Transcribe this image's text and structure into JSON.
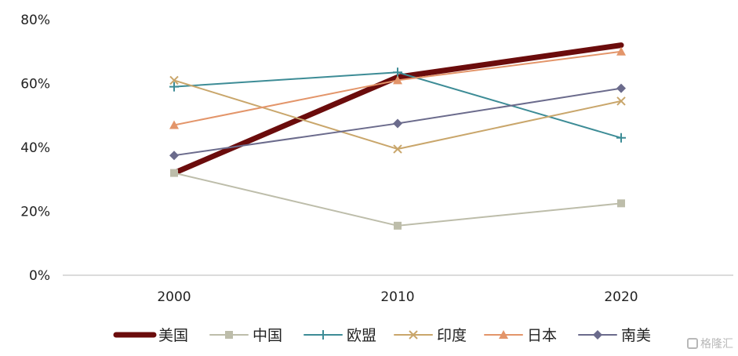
{
  "chart_data": {
    "type": "line",
    "title": "",
    "xlabel": "",
    "ylabel": "",
    "categories": [
      "2000",
      "2010",
      "2020"
    ],
    "ylim": [
      0,
      0.8
    ],
    "yticks": [
      "0%",
      "20%",
      "40%",
      "60%",
      "80%"
    ],
    "legend_position": "bottom",
    "grid": false,
    "series": [
      {
        "name": "美国",
        "values": [
          0.32,
          0.62,
          0.72
        ],
        "color": "#6b0c0c",
        "marker": "none",
        "width": "thick"
      },
      {
        "name": "中国",
        "values": [
          0.32,
          0.155,
          0.225
        ],
        "color": "#bdbdaa",
        "marker": "square",
        "width": "normal"
      },
      {
        "name": "欧盟",
        "values": [
          0.59,
          0.635,
          0.43
        ],
        "color": "#3d8c96",
        "marker": "plus",
        "width": "normal"
      },
      {
        "name": "印度",
        "values": [
          0.61,
          0.395,
          0.545
        ],
        "color": "#c9a66b",
        "marker": "x",
        "width": "normal"
      },
      {
        "name": "日本",
        "values": [
          0.47,
          0.61,
          0.7
        ],
        "color": "#e3956a",
        "marker": "triangle",
        "width": "normal"
      },
      {
        "name": "南美",
        "values": [
          0.375,
          0.475,
          0.585
        ],
        "color": "#6b6b8c",
        "marker": "diamond",
        "width": "normal"
      }
    ]
  },
  "watermark": "格隆汇",
  "watermark_icon": "brand-logo-icon"
}
